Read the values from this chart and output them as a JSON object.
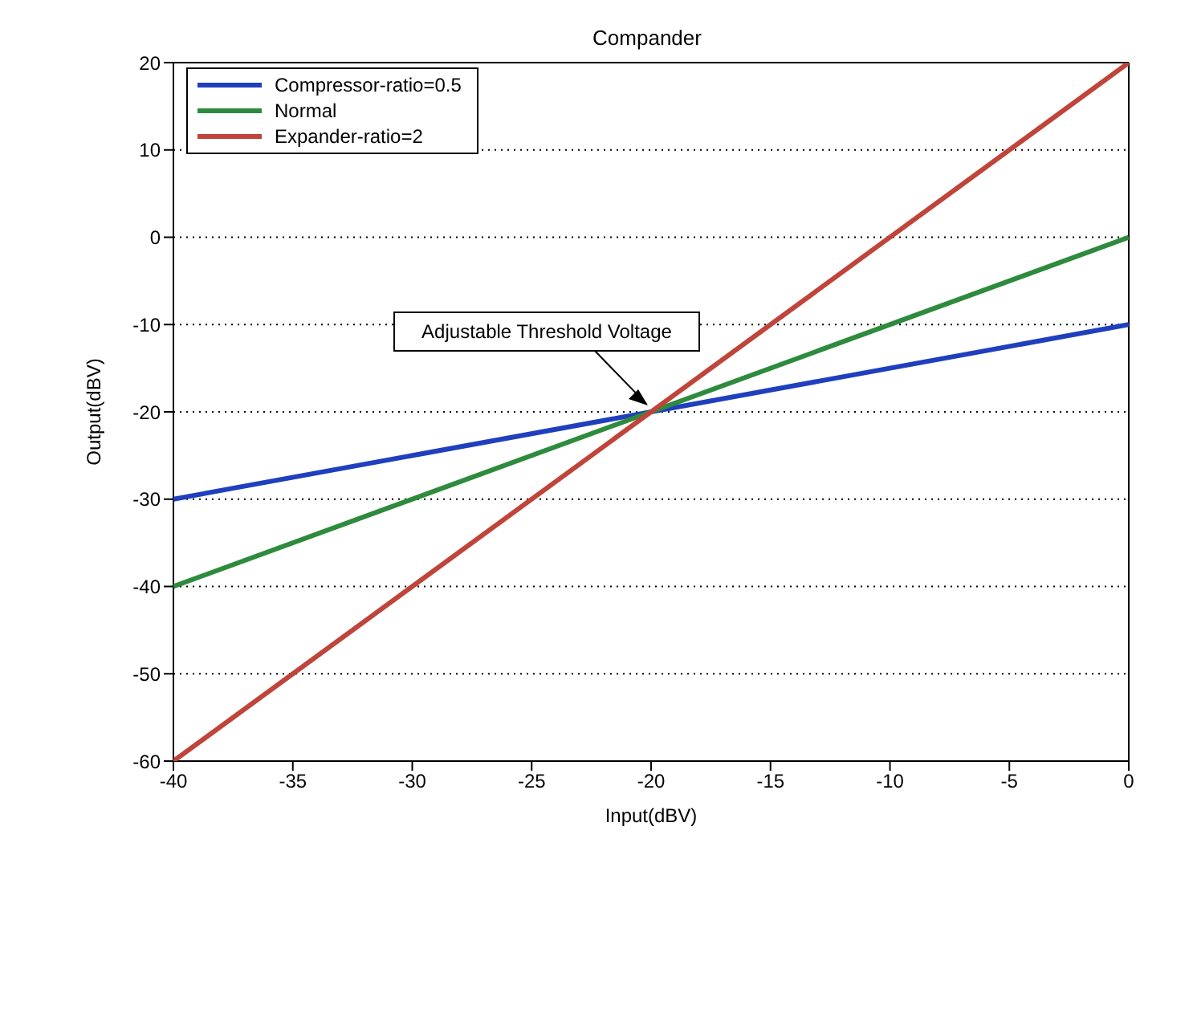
{
  "chart_data": {
    "type": "line",
    "title": "Compander",
    "xlabel": "Input(dBV)",
    "ylabel": "Output(dBV)",
    "series": [
      {
        "name": "Compressor-ratio=0.5",
        "color": "#1f3fbf",
        "values": [
          -30,
          -10
        ]
      },
      {
        "name": "Normal",
        "color": "#2e8b3e",
        "values": [
          -40,
          0
        ]
      },
      {
        "name": "Expander-ratio=2",
        "color": "#c0443a",
        "values": [
          -60,
          20
        ]
      }
    ],
    "x": [
      -40,
      0
    ],
    "xlim": [
      -40,
      0
    ],
    "xticks": [
      -40,
      -35,
      -30,
      -25,
      -20,
      -15,
      -10,
      -5,
      0
    ],
    "ylim": [
      -60,
      20
    ],
    "yticks": [
      -60,
      -50,
      -40,
      -30,
      -20,
      -10,
      0,
      10,
      20
    ],
    "grid": "y",
    "legend": "top left",
    "marker": "none",
    "line_style": "solid",
    "annotations": [
      {
        "text": "Adjustable Threshold Voltage",
        "x": -20,
        "y": -20
      }
    ]
  }
}
